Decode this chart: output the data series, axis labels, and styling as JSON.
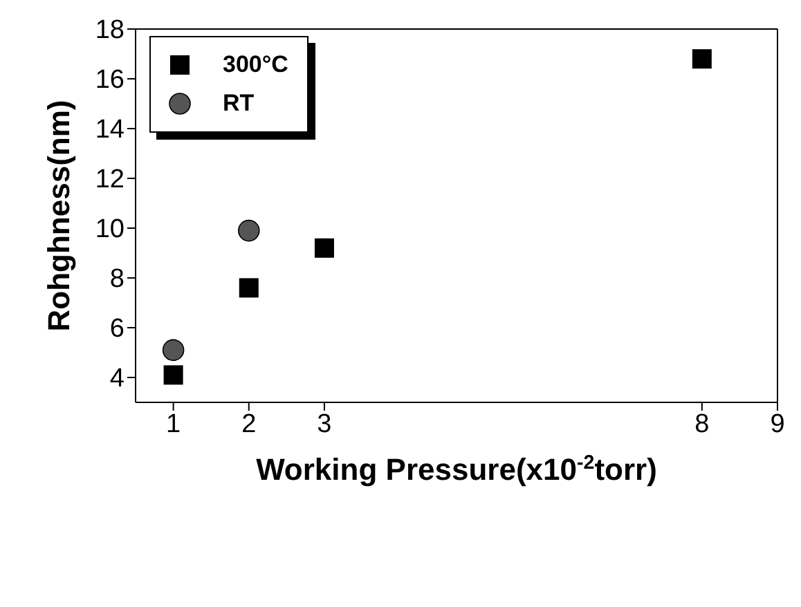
{
  "chart_data": {
    "type": "scatter",
    "xlabel": "Working Pressure(x10$^{-2}$torr)",
    "ylabel": "Rohghness(nm)",
    "xlim": [
      0.5,
      9
    ],
    "xticks": [
      1,
      2,
      3,
      8,
      9
    ],
    "ylim": [
      3,
      18
    ],
    "yticks": [
      4,
      6,
      8,
      10,
      12,
      14,
      16,
      18
    ],
    "grid": false,
    "legend": "top left",
    "series": [
      {
        "name": "300°C",
        "color": "#000000",
        "marker": "square",
        "x": [
          1,
          2,
          3,
          8
        ],
        "values": [
          4.1,
          7.6,
          9.2,
          16.8
        ]
      },
      {
        "name": "RT",
        "color": "#555555",
        "marker": "circle",
        "x": [
          1,
          2
        ],
        "values": [
          5.1,
          9.9
        ]
      }
    ]
  }
}
